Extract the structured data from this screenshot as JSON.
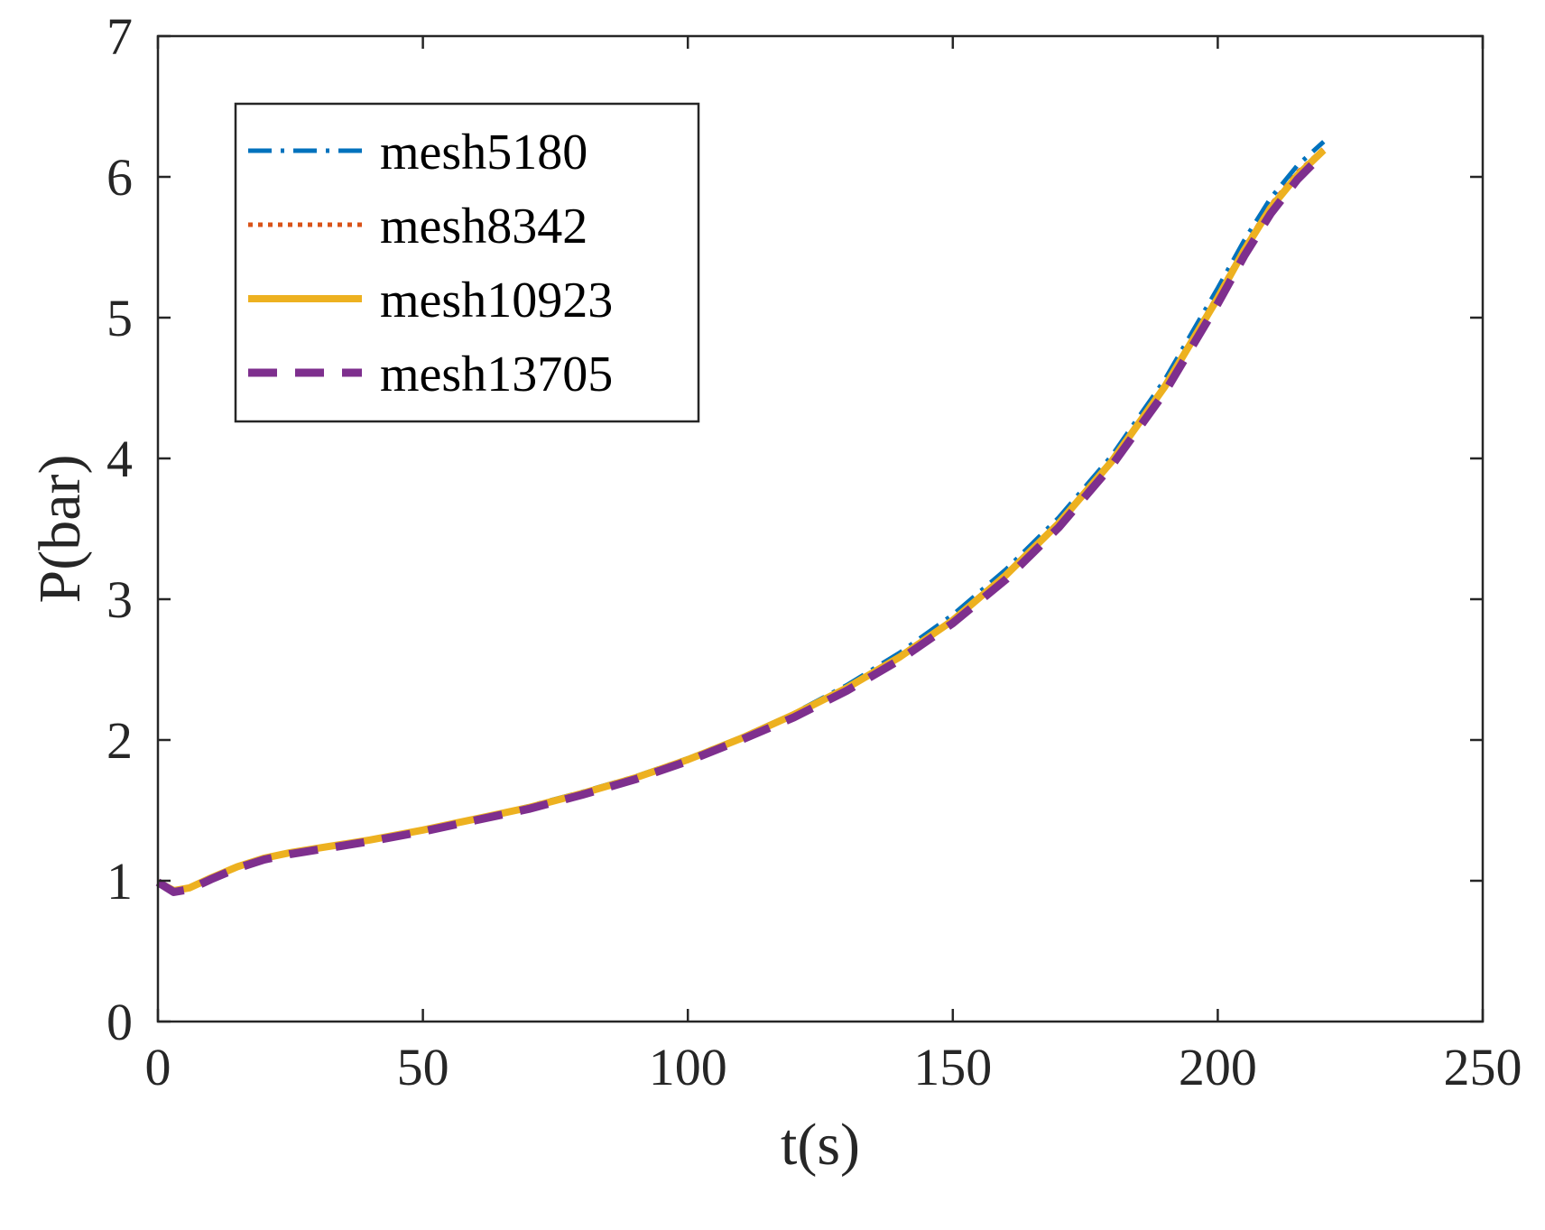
{
  "chart_data": {
    "type": "line",
    "title": "",
    "xlabel": "t(s)",
    "ylabel": "P(bar)",
    "xlim": [
      0,
      250
    ],
    "ylim": [
      0,
      7
    ],
    "xticks": [
      0,
      50,
      100,
      150,
      200,
      250
    ],
    "yticks": [
      0,
      1,
      2,
      3,
      4,
      5,
      6,
      7
    ],
    "xtick_labels": [
      "0",
      "50",
      "100",
      "150",
      "200",
      "250"
    ],
    "ytick_labels": [
      "0",
      "1",
      "2",
      "3",
      "4",
      "5",
      "6",
      "7"
    ],
    "grid": false,
    "legend_position": "top-left",
    "series": [
      {
        "name": "mesh5180",
        "color": "#0072BD",
        "style": "dash-dot",
        "x": [
          0,
          3,
          6,
          10,
          15,
          20,
          25,
          30,
          40,
          50,
          60,
          70,
          80,
          90,
          100,
          110,
          120,
          130,
          140,
          150,
          160,
          170,
          180,
          190,
          200,
          205,
          210,
          215,
          220
        ],
        "y": [
          0.99,
          0.93,
          0.95,
          1.02,
          1.1,
          1.16,
          1.2,
          1.23,
          1.29,
          1.36,
          1.44,
          1.53,
          1.63,
          1.74,
          1.87,
          2.02,
          2.19,
          2.39,
          2.62,
          2.89,
          3.21,
          3.58,
          4.02,
          4.56,
          5.21,
          5.55,
          5.85,
          6.08,
          6.25
        ]
      },
      {
        "name": "mesh8342",
        "color": "#D95319",
        "style": "dotted",
        "x": [
          0,
          3,
          6,
          10,
          15,
          20,
          25,
          30,
          40,
          50,
          60,
          70,
          80,
          90,
          100,
          110,
          120,
          130,
          140,
          150,
          160,
          170,
          180,
          190,
          200,
          205,
          210,
          215,
          220
        ],
        "y": [
          0.99,
          0.93,
          0.95,
          1.02,
          1.1,
          1.16,
          1.2,
          1.23,
          1.29,
          1.36,
          1.44,
          1.52,
          1.62,
          1.73,
          1.86,
          2.01,
          2.18,
          2.37,
          2.6,
          2.86,
          3.18,
          3.55,
          3.99,
          4.52,
          5.16,
          5.5,
          5.8,
          6.03,
          6.2
        ]
      },
      {
        "name": "mesh10923",
        "color": "#EDB120",
        "style": "solid",
        "x": [
          0,
          3,
          6,
          10,
          15,
          20,
          25,
          30,
          40,
          50,
          60,
          70,
          80,
          90,
          100,
          110,
          120,
          130,
          140,
          150,
          160,
          170,
          180,
          190,
          200,
          205,
          210,
          215,
          220
        ],
        "y": [
          0.99,
          0.93,
          0.95,
          1.02,
          1.1,
          1.16,
          1.2,
          1.23,
          1.29,
          1.36,
          1.44,
          1.52,
          1.62,
          1.73,
          1.86,
          2.01,
          2.18,
          2.37,
          2.59,
          2.85,
          3.17,
          3.54,
          3.98,
          4.51,
          5.14,
          5.48,
          5.78,
          6.01,
          6.19
        ]
      },
      {
        "name": "mesh13705",
        "color": "#7E2F8E",
        "style": "dashed",
        "x": [
          0,
          3,
          6,
          10,
          15,
          20,
          25,
          30,
          40,
          50,
          60,
          70,
          80,
          90,
          100,
          110,
          120,
          130,
          140,
          150,
          160,
          170,
          180,
          190,
          200,
          205,
          210,
          215,
          220
        ],
        "y": [
          0.99,
          0.92,
          0.94,
          1.01,
          1.09,
          1.15,
          1.19,
          1.22,
          1.28,
          1.35,
          1.43,
          1.51,
          1.61,
          1.72,
          1.85,
          2.0,
          2.16,
          2.35,
          2.57,
          2.83,
          3.14,
          3.51,
          3.95,
          4.47,
          5.1,
          5.44,
          5.74,
          5.98,
          6.17
        ]
      }
    ]
  }
}
